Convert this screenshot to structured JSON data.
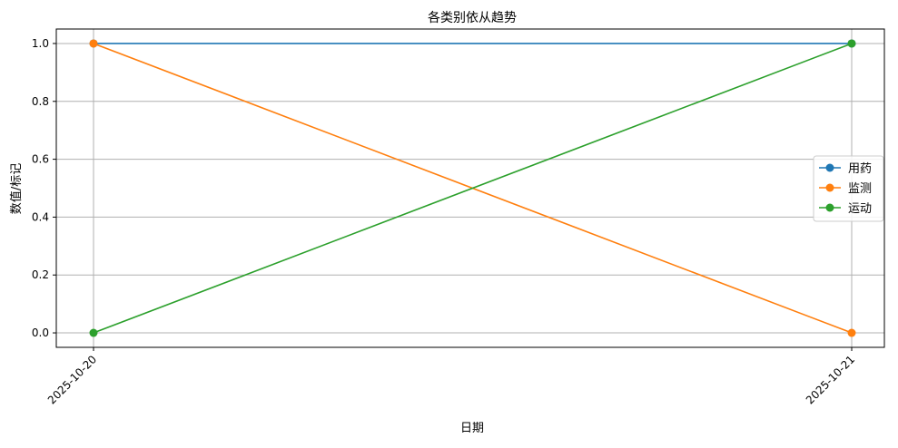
{
  "chart_data": {
    "type": "line",
    "title": "各类别依从趋势",
    "xlabel": "日期",
    "ylabel": "数值/标记",
    "categories": [
      "2025-10-20",
      "2025-10-21"
    ],
    "ylim": [
      -0.05,
      1.05
    ],
    "yticks": [
      0.0,
      0.2,
      0.4,
      0.6,
      0.8,
      1.0
    ],
    "ytick_labels": [
      "0.0",
      "0.2",
      "0.4",
      "0.6",
      "0.8",
      "1.0"
    ],
    "grid": true,
    "legend_position": "center-right",
    "series": [
      {
        "name": "用药",
        "values": [
          1,
          1
        ],
        "color": "#1f77b4"
      },
      {
        "name": "监测",
        "values": [
          1,
          0
        ],
        "color": "#ff7f0e"
      },
      {
        "name": "运动",
        "values": [
          0,
          1
        ],
        "color": "#2ca02c"
      }
    ]
  }
}
